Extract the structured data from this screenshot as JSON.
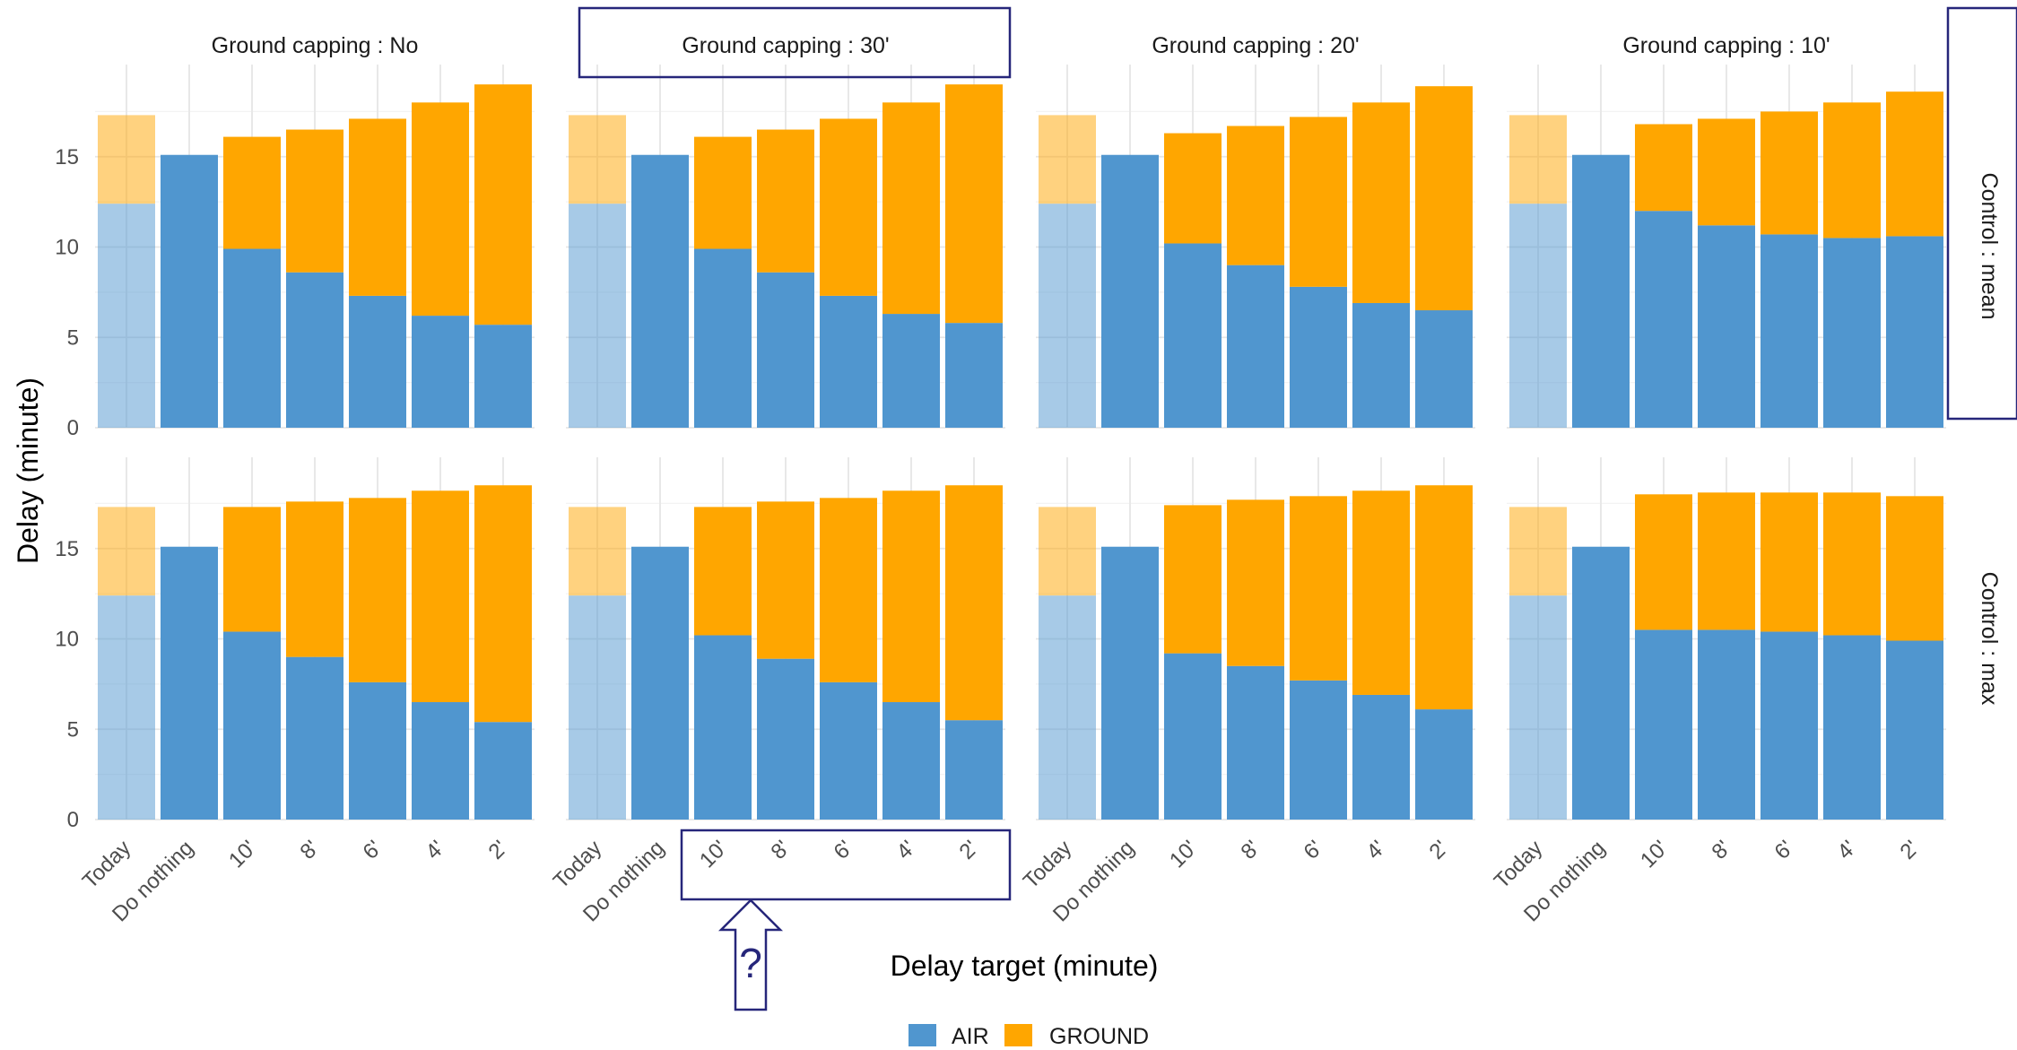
{
  "chart_data": {
    "type": "bar",
    "stacked": true,
    "categories": [
      "Today",
      "Do nothing",
      "10'",
      "8'",
      "6'",
      "4'",
      "2'"
    ],
    "xlabel": "Delay target (minute)",
    "ylabel": "Delay (minute)",
    "ylim": [
      0,
      19
    ],
    "yticks": [
      0,
      5,
      10,
      15
    ],
    "grid": true,
    "legend_position": "bottom",
    "series_names": [
      "AIR",
      "GROUND"
    ],
    "colors": {
      "AIR": "#5096cf",
      "GROUND": "#ffa600",
      "annotation": "#26267a"
    },
    "columns": [
      "Ground capping : No",
      "Ground capping : 30'",
      "Ground capping : 20'",
      "Ground capping : 10'"
    ],
    "rows": [
      "Control : mean",
      "Control : max"
    ],
    "annotation_text": "?",
    "panels": [
      {
        "row": 0,
        "col": 0,
        "air": [
          12.4,
          15.1,
          9.9,
          8.6,
          7.3,
          6.2,
          5.7
        ],
        "ground": [
          4.9,
          0,
          6.2,
          7.9,
          9.8,
          11.8,
          13.3
        ]
      },
      {
        "row": 0,
        "col": 1,
        "air": [
          12.4,
          15.1,
          9.9,
          8.6,
          7.3,
          6.3,
          5.8
        ],
        "ground": [
          4.9,
          0,
          6.2,
          7.9,
          9.8,
          11.7,
          13.2
        ]
      },
      {
        "row": 0,
        "col": 2,
        "air": [
          12.4,
          15.1,
          10.2,
          9.0,
          7.8,
          6.9,
          6.5
        ],
        "ground": [
          4.9,
          0,
          6.1,
          7.7,
          9.4,
          11.1,
          12.4
        ]
      },
      {
        "row": 0,
        "col": 3,
        "air": [
          12.4,
          15.1,
          12.0,
          11.2,
          10.7,
          10.5,
          10.6
        ],
        "ground": [
          4.9,
          0,
          4.8,
          5.9,
          6.8,
          7.5,
          8.0
        ]
      },
      {
        "row": 1,
        "col": 0,
        "air": [
          12.4,
          15.1,
          10.4,
          9.0,
          7.6,
          6.5,
          5.4
        ],
        "ground": [
          4.9,
          0,
          6.9,
          8.6,
          10.2,
          11.7,
          13.1
        ]
      },
      {
        "row": 1,
        "col": 1,
        "air": [
          12.4,
          15.1,
          10.2,
          8.9,
          7.6,
          6.5,
          5.5
        ],
        "ground": [
          4.9,
          0,
          7.1,
          8.7,
          10.2,
          11.7,
          13.0
        ]
      },
      {
        "row": 1,
        "col": 2,
        "air": [
          12.4,
          15.1,
          9.2,
          8.5,
          7.7,
          6.9,
          6.1
        ],
        "ground": [
          4.9,
          0,
          8.2,
          9.2,
          10.2,
          11.3,
          12.4
        ]
      },
      {
        "row": 1,
        "col": 3,
        "air": [
          12.4,
          15.1,
          10.5,
          10.5,
          10.4,
          10.2,
          9.9
        ],
        "ground": [
          4.9,
          0,
          7.5,
          7.6,
          7.7,
          7.9,
          8.0
        ]
      }
    ]
  }
}
